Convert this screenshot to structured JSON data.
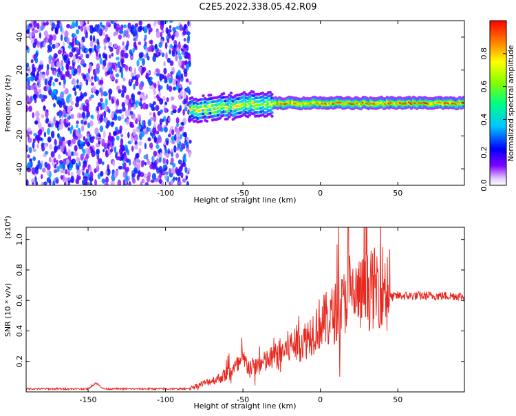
{
  "figure": {
    "title": "C2E5.2022.338.05.42.R09"
  },
  "chart_data": [
    {
      "type": "heatmap",
      "xlabel": "Height of straight line (km)",
      "ylabel": "Frequency (Hz)",
      "xlim": [
        -190,
        93
      ],
      "ylim": [
        -50,
        50
      ],
      "x_ticks": [
        -150,
        -100,
        -50,
        0,
        50
      ],
      "y_ticks": [
        -40,
        -20,
        0,
        20,
        40
      ],
      "colorbar": {
        "label": "Normalized spectral amplitude",
        "range": [
          0,
          1
        ],
        "ticks": [
          0.0,
          0.2,
          0.4,
          0.6,
          0.8
        ],
        "colormap": "rainbow",
        "colors": [
          "#ffffff",
          "#8000ff",
          "#0000ff",
          "#00c8ff",
          "#00ff80",
          "#80ff00",
          "#ffff00",
          "#ff8000",
          "#ff0000"
        ]
      },
      "features": {
        "noise_region_x": [
          -190,
          -84
        ],
        "noise_amplitude_range": [
          0.05,
          0.35
        ],
        "signal_onset_x": -84,
        "signal_center_frequency": 0,
        "signal_band_halfwidth_hz": 3
      }
    },
    {
      "type": "line",
      "xlabel": "Height of straight line (km)",
      "ylabel": "SNR (10 * v/v)",
      "y_multiplier_label": "(x10",
      "y_multiplier_exponent": "4",
      "y_multiplier_close": ")",
      "xlim": [
        -190,
        93
      ],
      "ylim": [
        0,
        1.08
      ],
      "x_ticks": [
        -150,
        -100,
        -50,
        0,
        50
      ],
      "y_ticks": [
        0.2,
        0.4,
        0.6,
        0.8,
        1.0
      ],
      "series": [
        {
          "color": "#e8281e",
          "x": [
            -190,
            -170,
            -150,
            -145,
            -140,
            -120,
            -100,
            -85,
            -75,
            -65,
            -55,
            -50,
            -45,
            -40,
            -30,
            -20,
            -10,
            0,
            5,
            10,
            15,
            18,
            20,
            25,
            30,
            35,
            40,
            45,
            50,
            60,
            70,
            80,
            90,
            93
          ],
          "y": [
            0.02,
            0.02,
            0.02,
            0.06,
            0.02,
            0.02,
            0.02,
            0.02,
            0.05,
            0.08,
            0.14,
            0.18,
            0.14,
            0.15,
            0.2,
            0.26,
            0.3,
            0.4,
            0.42,
            0.46,
            0.5,
            0.62,
            0.55,
            0.56,
            0.58,
            0.6,
            0.62,
            0.62,
            0.63,
            0.63,
            0.63,
            0.63,
            0.63,
            0.62
          ]
        }
      ]
    }
  ]
}
